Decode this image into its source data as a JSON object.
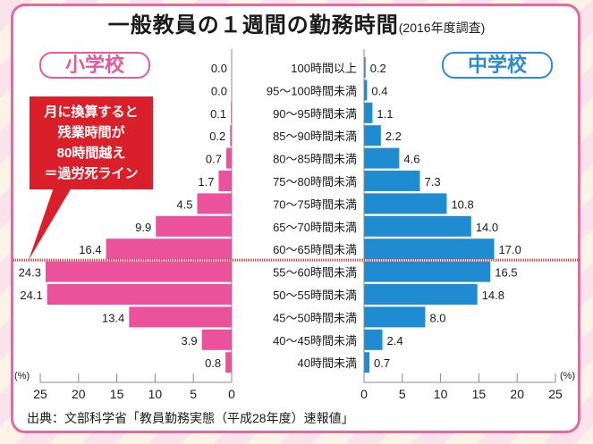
{
  "title": "一般教員の１週間の勤務時間",
  "subtitle": "(2016年度調査)",
  "badges": {
    "elementary": "小学校",
    "middle": "中学校"
  },
  "callout": {
    "lines": [
      "月に換算すると",
      "残業時間が",
      "80時間越え",
      "＝過労死ライン"
    ]
  },
  "source": "出典：文部科学省「教員勤務実態（平成28年度）速報値」",
  "colors": {
    "elementary": "#ec519b",
    "middle": "#1f8bd0",
    "deathline": "#e0403a",
    "frame": "#e06aa2"
  },
  "chart_data": {
    "type": "bar",
    "orientation": "horizontal-butterfly",
    "title": "一般教員の１週間の勤務時間 (2016年度調査)",
    "xlabel": "(%)",
    "xlim": [
      0,
      25
    ],
    "xticks": [
      0,
      5,
      10,
      15,
      20,
      25
    ],
    "categories": [
      "100時間以上",
      "95〜100時間未満",
      "90〜95時間未満",
      "85〜90時間未満",
      "80〜85時間未満",
      "75〜80時間未満",
      "70〜75時間未満",
      "65〜70時間未満",
      "60〜65時間未満",
      "55〜60時間未満",
      "50〜55時間未満",
      "45〜50時間未満",
      "40〜45時間未満",
      "40時間未満"
    ],
    "series": [
      {
        "name": "小学校",
        "side": "left",
        "values": [
          0.0,
          0.0,
          0.1,
          0.2,
          0.7,
          1.7,
          4.5,
          9.9,
          16.4,
          24.3,
          24.1,
          13.4,
          3.9,
          0.8
        ],
        "labels": [
          "0.0",
          "0.0",
          "0.1",
          "0.2",
          "0.7",
          "1.7",
          "4.5",
          "9.9",
          "16.4",
          "24.3",
          "24.1",
          "13.4",
          "3.9",
          "0.8"
        ]
      },
      {
        "name": "中学校",
        "side": "right",
        "values": [
          0.2,
          0.4,
          1.1,
          2.2,
          4.6,
          7.3,
          10.8,
          14.0,
          17.0,
          16.5,
          14.8,
          8.0,
          2.4,
          0.7
        ],
        "labels": [
          "0.2",
          "0.4",
          "1.1",
          "2.2",
          "4.6",
          "7.3",
          "10.8",
          "14.0",
          "17.0",
          "16.5",
          "14.8",
          "8.0",
          "2.4",
          "0.7"
        ]
      }
    ],
    "annotation": {
      "text": "月に換算すると残業時間が80時間越え＝過労死ライン",
      "line_between": [
        "60〜65時間未満",
        "55〜60時間未満"
      ]
    },
    "grid": false,
    "legend": "badges top-left and top-right"
  }
}
